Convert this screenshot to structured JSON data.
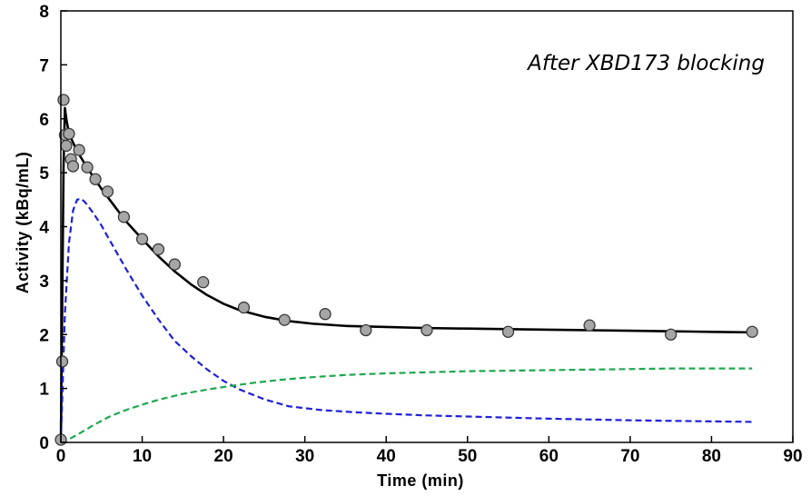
{
  "chart_data": {
    "type": "line",
    "title": "",
    "annotation": "After XBD173 blocking",
    "xlabel": "Time (min)",
    "ylabel": "Activity (kBq/mL)",
    "xlim": [
      0,
      90
    ],
    "ylim": [
      0,
      8
    ],
    "xticks": [
      "0",
      "10",
      "20",
      "30",
      "40",
      "50",
      "60",
      "70",
      "80",
      "90"
    ],
    "yticks": [
      "0",
      "1",
      "2",
      "3",
      "4",
      "5",
      "6",
      "7",
      "8"
    ],
    "grid": false,
    "legend": "none",
    "series": [
      {
        "style": "markers",
        "color": "#a6a6a6",
        "x": [
          0.0,
          0.17,
          0.33,
          0.5,
          0.67,
          1.0,
          1.25,
          1.5,
          2.25,
          3.25,
          4.25,
          5.75,
          7.75,
          10.0,
          12.0,
          14.0,
          17.5,
          22.5,
          27.5,
          32.5,
          37.5,
          45.0,
          55.0,
          65.0,
          75.0,
          85.0
        ],
        "y": [
          0.05,
          1.5,
          6.35,
          5.7,
          5.5,
          5.72,
          5.25,
          5.12,
          5.42,
          5.1,
          4.88,
          4.65,
          4.18,
          3.77,
          3.58,
          3.3,
          2.97,
          2.5,
          2.27,
          2.38,
          2.08,
          2.08,
          2.05,
          2.17,
          2.0,
          2.05
        ]
      },
      {
        "style": "solid",
        "color": "#000000",
        "x": [
          0.0,
          0.33,
          0.5,
          0.67,
          1,
          2,
          3,
          4,
          5,
          6,
          8,
          10,
          12,
          14,
          16,
          18,
          20,
          22,
          25,
          28,
          31,
          35,
          40,
          45,
          50,
          55,
          60,
          65,
          70,
          75,
          80,
          85
        ],
        "y": [
          0.0,
          5.1,
          6.2,
          6.0,
          5.72,
          5.4,
          5.15,
          4.92,
          4.7,
          4.5,
          4.1,
          3.77,
          3.45,
          3.17,
          2.93,
          2.73,
          2.57,
          2.45,
          2.33,
          2.25,
          2.2,
          2.16,
          2.14,
          2.12,
          2.11,
          2.1,
          2.09,
          2.08,
          2.07,
          2.06,
          2.05,
          2.04
        ]
      },
      {
        "style": "dashed",
        "color": "#1f1fd9",
        "x": [
          0.0,
          0.5,
          1,
          1.5,
          2,
          2.5,
          3,
          4,
          5,
          6,
          8,
          10,
          12,
          14,
          16,
          18,
          20,
          22,
          25,
          28,
          32,
          36,
          40,
          45,
          50,
          60,
          70,
          80,
          85
        ],
        "y": [
          0.0,
          2.4,
          3.7,
          4.3,
          4.5,
          4.52,
          4.45,
          4.25,
          4.02,
          3.75,
          3.22,
          2.72,
          2.28,
          1.88,
          1.6,
          1.35,
          1.14,
          0.98,
          0.8,
          0.67,
          0.6,
          0.56,
          0.53,
          0.5,
          0.48,
          0.44,
          0.41,
          0.39,
          0.38
        ]
      },
      {
        "style": "dashed",
        "color": "#1fa84f",
        "x": [
          0.0,
          1,
          2,
          4,
          6,
          8,
          10,
          12,
          15,
          18,
          21,
          24,
          27,
          30,
          35,
          40,
          45,
          50,
          55,
          60,
          65,
          70,
          75,
          80,
          85
        ],
        "y": [
          0.0,
          0.06,
          0.14,
          0.32,
          0.48,
          0.6,
          0.7,
          0.79,
          0.9,
          0.98,
          1.05,
          1.11,
          1.16,
          1.2,
          1.25,
          1.28,
          1.3,
          1.32,
          1.33,
          1.34,
          1.35,
          1.36,
          1.37,
          1.37,
          1.37
        ]
      }
    ]
  }
}
